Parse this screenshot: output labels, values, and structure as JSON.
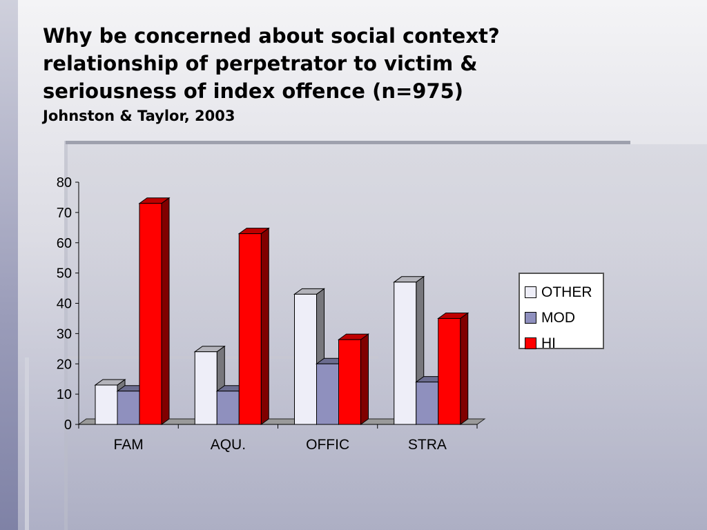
{
  "title_lines": [
    "Why be concerned about social context?",
    "relationship of perpetrator to victim &",
    "seriousness of index offence (n=975)"
  ],
  "subtitle": "Johnston & Taylor, 2003",
  "chart_data": {
    "type": "bar",
    "categories": [
      "FAM",
      "AQU.",
      "OFFIC",
      "STRA"
    ],
    "series": [
      {
        "name": "OTHER",
        "color": "#eeeef8",
        "values": [
          13,
          24,
          43,
          47
        ]
      },
      {
        "name": "MOD",
        "color": "#8f90be",
        "values": [
          11,
          11,
          20,
          14
        ]
      },
      {
        "name": "HI",
        "color": "#ff0000",
        "values": [
          73,
          63,
          28,
          35
        ]
      }
    ],
    "ylim": [
      0,
      80
    ],
    "yticks": [
      "0",
      "10",
      "20",
      "30",
      "40",
      "50",
      "60",
      "70",
      "80"
    ],
    "legend": "right",
    "grid": false,
    "style": "3d-clustered"
  }
}
